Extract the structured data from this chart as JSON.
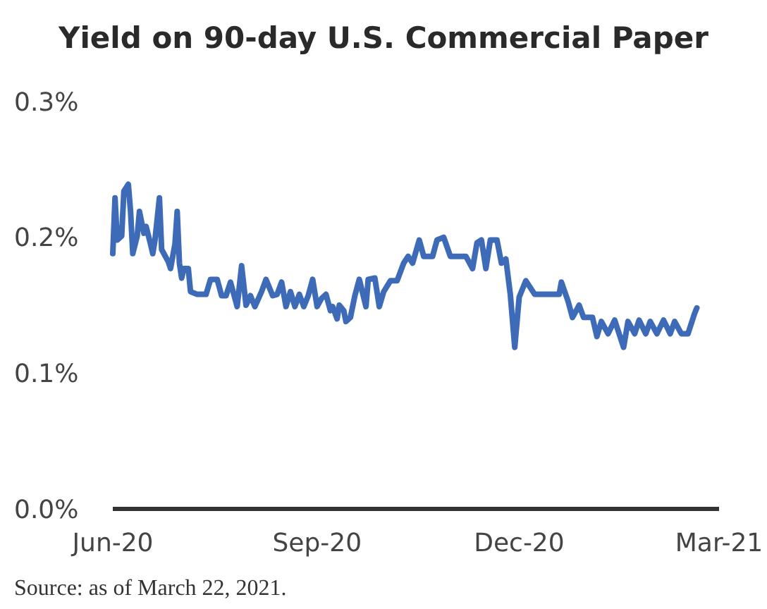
{
  "chart_data": {
    "type": "line",
    "title": "Yield on 90-day U.S. Commercial Paper",
    "annotations": [
      "Source: as of March 22, 2021."
    ],
    "x": [
      "2020-06-01",
      "2020-06-02",
      "2020-06-03",
      "2020-06-05",
      "2020-06-06",
      "2020-06-08",
      "2020-06-09",
      "2020-06-10",
      "2020-06-12",
      "2020-06-13",
      "2020-06-15",
      "2020-06-16",
      "2020-06-18",
      "2020-06-19",
      "2020-06-20",
      "2020-06-22",
      "2020-06-23",
      "2020-06-24",
      "2020-06-26",
      "2020-06-27",
      "2020-06-29",
      "2020-06-30",
      "2020-07-01",
      "2020-07-02",
      "2020-07-03",
      "2020-07-05",
      "2020-07-06",
      "2020-07-09",
      "2020-07-13",
      "2020-07-15",
      "2020-07-18",
      "2020-07-20",
      "2020-07-22",
      "2020-07-24",
      "2020-07-27",
      "2020-07-29",
      "2020-07-31",
      "2020-08-02",
      "2020-08-04",
      "2020-08-07",
      "2020-08-09",
      "2020-08-12",
      "2020-08-14",
      "2020-08-16",
      "2020-08-18",
      "2020-08-20",
      "2020-08-22",
      "2020-08-24",
      "2020-08-26",
      "2020-08-28",
      "2020-08-30",
      "2020-09-01",
      "2020-09-03",
      "2020-09-05",
      "2020-09-07",
      "2020-09-08",
      "2020-09-10",
      "2020-09-11",
      "2020-09-13",
      "2020-09-14",
      "2020-09-16",
      "2020-09-18",
      "2020-09-20",
      "2020-09-23",
      "2020-09-24",
      "2020-09-27",
      "2020-09-29",
      "2020-10-01",
      "2020-10-04",
      "2020-10-07",
      "2020-10-10",
      "2020-10-12",
      "2020-10-14",
      "2020-10-17",
      "2020-10-19",
      "2020-10-23",
      "2020-10-25",
      "2020-10-28",
      "2020-10-31",
      "2020-11-04",
      "2020-11-07",
      "2020-11-10",
      "2020-11-12",
      "2020-11-14",
      "2020-11-16",
      "2020-11-18",
      "2020-11-21",
      "2020-11-23",
      "2020-11-25",
      "2020-11-27",
      "2020-11-29",
      "2020-12-01",
      "2020-12-04",
      "2020-12-08",
      "2020-12-15",
      "2020-12-19",
      "2020-12-20",
      "2020-12-23",
      "2020-12-25",
      "2020-12-28",
      "2020-12-30",
      "2021-01-03",
      "2021-01-05",
      "2021-01-07",
      "2021-01-10",
      "2021-01-13",
      "2021-01-17",
      "2021-01-19",
      "2021-01-22",
      "2021-01-24",
      "2021-01-27",
      "2021-01-29",
      "2021-02-01",
      "2021-02-04",
      "2021-02-07",
      "2021-02-09",
      "2021-02-12",
      "2021-02-15",
      "2021-02-18",
      "2021-02-19"
    ],
    "series": [
      {
        "color": "#3d6bb8",
        "values": [
          0.188,
          0.229,
          0.198,
          0.201,
          0.234,
          0.239,
          0.219,
          0.188,
          0.201,
          0.219,
          0.203,
          0.208,
          0.195,
          0.188,
          0.198,
          0.229,
          0.191,
          0.188,
          0.182,
          0.177,
          0.195,
          0.219,
          0.181,
          0.17,
          0.177,
          0.177,
          0.16,
          0.158,
          0.158,
          0.169,
          0.169,
          0.157,
          0.157,
          0.167,
          0.149,
          0.179,
          0.15,
          0.157,
          0.149,
          0.16,
          0.169,
          0.157,
          0.158,
          0.167,
          0.149,
          0.16,
          0.149,
          0.158,
          0.149,
          0.157,
          0.169,
          0.149,
          0.155,
          0.158,
          0.146,
          0.149,
          0.14,
          0.15,
          0.146,
          0.138,
          0.141,
          0.157,
          0.169,
          0.149,
          0.169,
          0.17,
          0.149,
          0.16,
          0.168,
          0.168,
          0.181,
          0.186,
          0.181,
          0.198,
          0.186,
          0.186,
          0.198,
          0.2,
          0.186,
          0.186,
          0.186,
          0.177,
          0.196,
          0.198,
          0.177,
          0.198,
          0.198,
          0.181,
          0.184,
          0.158,
          0.119,
          0.156,
          0.168,
          0.158,
          0.158,
          0.158,
          0.167,
          0.153,
          0.141,
          0.15,
          0.141,
          0.141,
          0.127,
          0.138,
          0.129,
          0.139,
          0.119,
          0.138,
          0.129,
          0.139,
          0.129,
          0.138,
          0.129,
          0.139,
          0.129,
          0.138,
          0.129,
          0.129,
          0.144,
          0.148
        ]
      }
    ],
    "xlim": [
      "2020-06-01",
      "2021-03-01"
    ],
    "xticks": [
      {
        "value": "2020-06-01",
        "label": "Jun-20"
      },
      {
        "value": "2020-09-01",
        "label": "Sep-20"
      },
      {
        "value": "2020-12-01",
        "label": "Dec-20"
      },
      {
        "value": "2021-03-01",
        "label": "Mar-21"
      }
    ],
    "ylim": [
      0,
      0.3
    ],
    "yticks": [
      {
        "value": 0,
        "label": "0.0%"
      },
      {
        "value": 0.1,
        "label": "0.1%"
      },
      {
        "value": 0.2,
        "label": "0.2%"
      },
      {
        "value": 0.3,
        "label": "0.3%"
      }
    ],
    "grid": false,
    "marker": "none",
    "line_style": "solid"
  }
}
